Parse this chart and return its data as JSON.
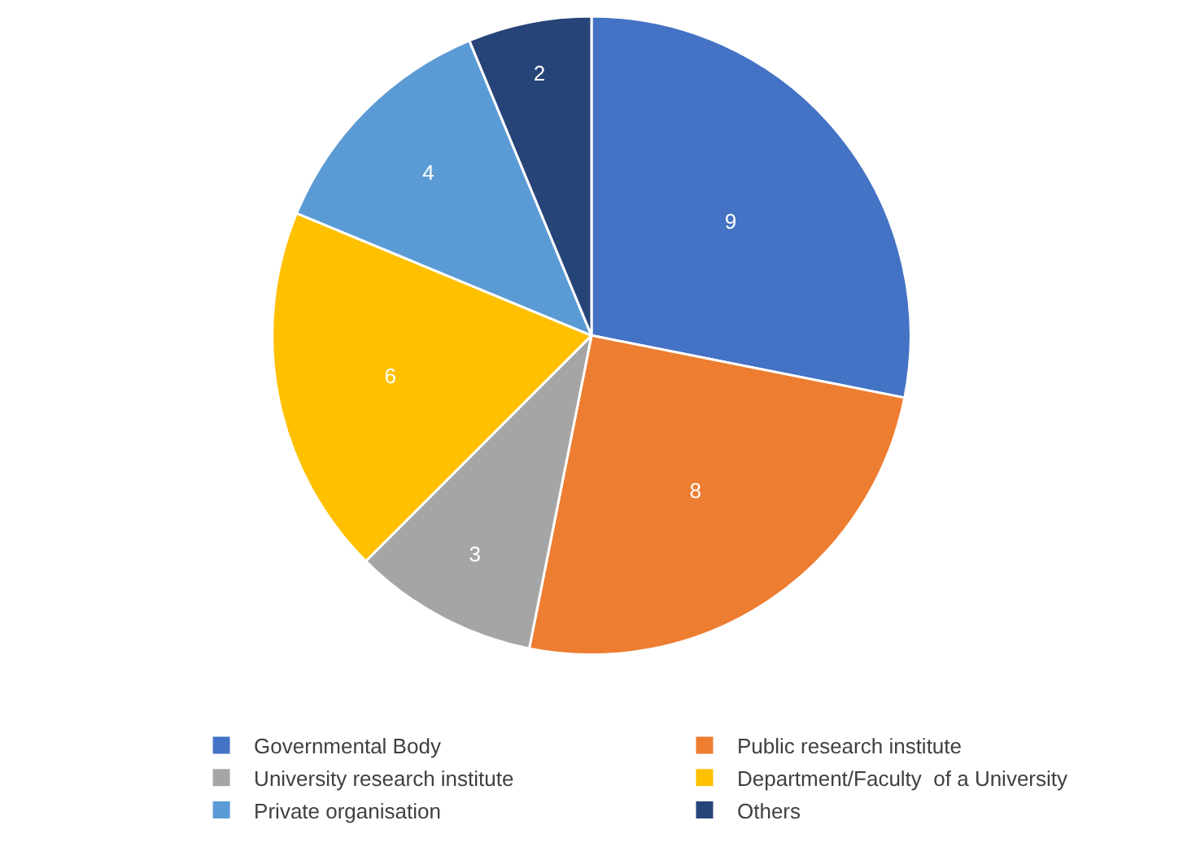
{
  "chart_data": {
    "type": "pie",
    "categories": [
      "Governmental Body",
      "Public research institute",
      "University research institute",
      "Department/Faculty  of a University",
      "Private organisation",
      "Others"
    ],
    "values": [
      9,
      8,
      3,
      6,
      4,
      2
    ],
    "colors": [
      "#4472c4",
      "#ed7d31",
      "#a5a5a5",
      "#ffc000",
      "#5b9bd5",
      "#264478"
    ],
    "data_labels": true,
    "legend": "bottom"
  }
}
